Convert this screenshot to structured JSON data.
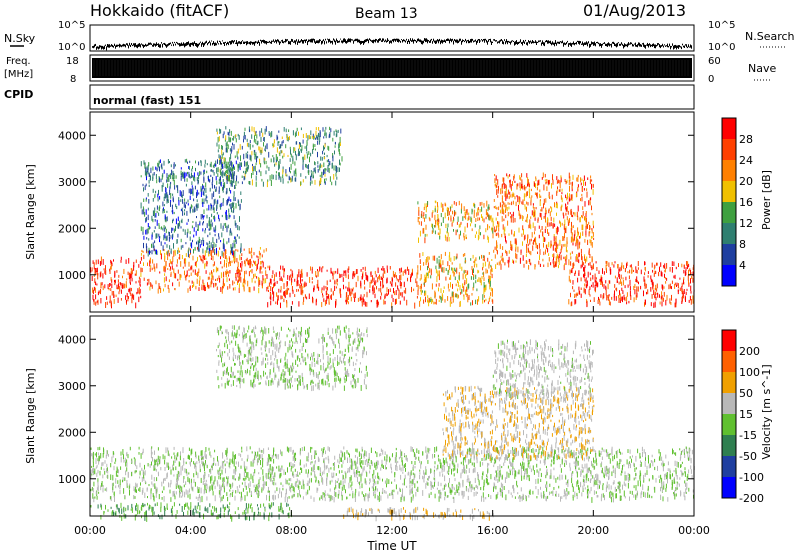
{
  "header": {
    "title": "Hokkaido (fitACF)",
    "beam": "Beam 13",
    "date": "01/Aug/2013"
  },
  "sky_panel": {
    "left_label": "N.Sky",
    "right_label": "N.Search",
    "ticks_left": [
      "10^5",
      "10^0"
    ],
    "ticks_right": [
      "10^5",
      "10^0"
    ]
  },
  "freq_panel": {
    "left_label_top": "Freq.",
    "left_label_unit": "[MHz]",
    "right_label": "Nave",
    "ticks_left": [
      "18",
      "8"
    ],
    "ticks_right": [
      "60",
      "0"
    ]
  },
  "cpid_panel": {
    "label": "CPID",
    "mode_text": "normal (fast) 151"
  },
  "axes": {
    "ylabel": "Slant Range [km]",
    "yticks": [
      "4000",
      "3000",
      "2000",
      "1000"
    ],
    "xticks": [
      "00:00",
      "04:00",
      "08:00",
      "12:00",
      "16:00",
      "20:00",
      "00:00"
    ],
    "xlabel": "Time UT"
  },
  "colors": {
    "power_scale": [
      "#0000ff",
      "#1f3fa0",
      "#2f7f70",
      "#3fa040",
      "#f0c000",
      "#ff8000",
      "#ff4000",
      "#ff0000"
    ],
    "velocity_scale": [
      "#0000ff",
      "#1f3fa0",
      "#2f7f50",
      "#60c030",
      "#b8b8b8",
      "#f0a000",
      "#ff6000",
      "#ff0000"
    ]
  },
  "chart_data": [
    {
      "type": "heatmap",
      "panel": "power",
      "xlabel": "Time UT",
      "ylabel": "Slant Range [km]",
      "xlim": [
        0,
        24
      ],
      "ylim": [
        200,
        4500
      ],
      "colorbar": {
        "label": "Power [dB]",
        "ticks": [
          "28",
          "24",
          "20",
          "16",
          "12",
          "8",
          "4"
        ],
        "range": [
          0,
          32
        ]
      },
      "regions": [
        {
          "t": [
            0,
            2
          ],
          "r": [
            400,
            1400
          ],
          "value": 28
        },
        {
          "t": [
            2,
            7
          ],
          "r": [
            700,
            1600
          ],
          "value": 24
        },
        {
          "t": [
            7,
            13
          ],
          "r": [
            400,
            1200
          ],
          "value": 28
        },
        {
          "t": [
            13,
            16
          ],
          "r": [
            400,
            1500
          ],
          "value": 20
        },
        {
          "t": [
            16,
            20
          ],
          "r": [
            1200,
            3200
          ],
          "value": 24
        },
        {
          "t": [
            19,
            24
          ],
          "r": [
            400,
            1300
          ],
          "value": 28
        },
        {
          "t": [
            5,
            10
          ],
          "r": [
            3000,
            4200
          ],
          "value": 12
        },
        {
          "t": [
            2,
            6
          ],
          "r": [
            1500,
            3500
          ],
          "value": 8
        },
        {
          "t": [
            13,
            16
          ],
          "r": [
            1800,
            2600
          ],
          "value": 20
        }
      ]
    },
    {
      "type": "heatmap",
      "panel": "velocity",
      "xlabel": "Time UT",
      "ylabel": "Slant Range [km]",
      "xlim": [
        0,
        24
      ],
      "ylim": [
        200,
        4500
      ],
      "colorbar": {
        "label": "Velocity [m s^-1]",
        "ticks": [
          "200",
          "100",
          "50",
          "15",
          "-15",
          "-50",
          "-100",
          "-200"
        ],
        "range": [
          -200,
          200
        ]
      },
      "regions": [
        {
          "t": [
            0,
            24
          ],
          "r": [
            600,
            1700
          ],
          "value": 0
        },
        {
          "t": [
            0,
            8
          ],
          "r": [
            200,
            500
          ],
          "value": -50
        },
        {
          "t": [
            10,
            16
          ],
          "r": [
            200,
            400
          ],
          "value": 50
        },
        {
          "t": [
            14,
            20
          ],
          "r": [
            1500,
            3000
          ],
          "value": 50
        },
        {
          "t": [
            5,
            11
          ],
          "r": [
            3000,
            4300
          ],
          "value": 0
        },
        {
          "t": [
            16,
            20
          ],
          "r": [
            2800,
            4000
          ],
          "value": 15
        }
      ]
    }
  ]
}
